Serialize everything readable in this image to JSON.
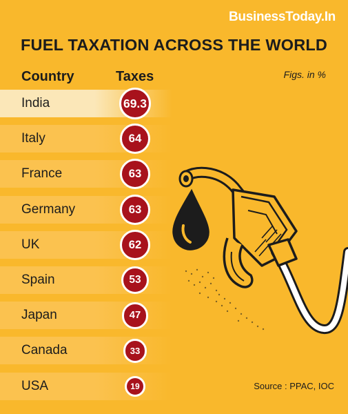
{
  "brand": "BusinessToday.In",
  "chart_data": {
    "type": "table",
    "title": "FUEL TAXATION ACROSS THE WORLD",
    "columns": [
      "Country",
      "Taxes"
    ],
    "unit_note": "Figs. in %",
    "categories": [
      "India",
      "Italy",
      "France",
      "Germany",
      "UK",
      "Spain",
      "Japan",
      "Canada",
      "USA"
    ],
    "values": [
      69.3,
      64,
      63,
      63,
      62,
      53,
      47,
      33,
      19
    ],
    "value_labels": [
      "69.3",
      "64",
      "63",
      "63",
      "62",
      "53",
      "47",
      "33",
      "19"
    ],
    "source": "Source : PPAC, IOC"
  },
  "colors": {
    "background": "#f9b82c",
    "badge": "#a8121c",
    "highlight_row": "#fbe7b8",
    "stripe_row": "#fbc24f"
  }
}
